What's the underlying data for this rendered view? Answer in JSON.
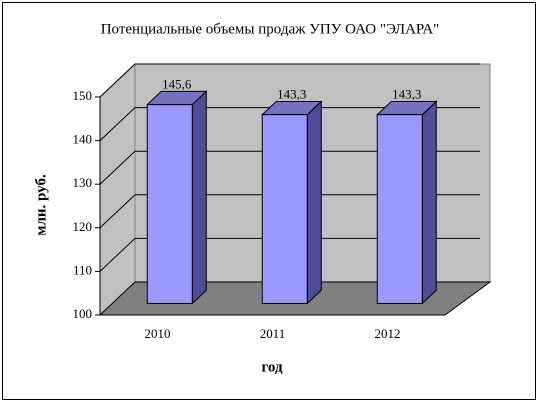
{
  "chart_data": {
    "type": "bar3d",
    "title": "Потенциальные объемы продаж УПУ ОАО \"ЭЛАРА\"",
    "x_label": "год",
    "y_label": "млн. руб.",
    "categories": [
      "2010",
      "2011",
      "2012"
    ],
    "values": [
      145.6,
      143.3,
      143.3
    ],
    "value_labels": [
      "145,6",
      "143,3",
      "143,3"
    ],
    "color": "#9999ff",
    "ylim": [
      100,
      150
    ],
    "yticks": [
      100,
      110,
      120,
      130,
      140,
      150
    ],
    "grid": true
  }
}
